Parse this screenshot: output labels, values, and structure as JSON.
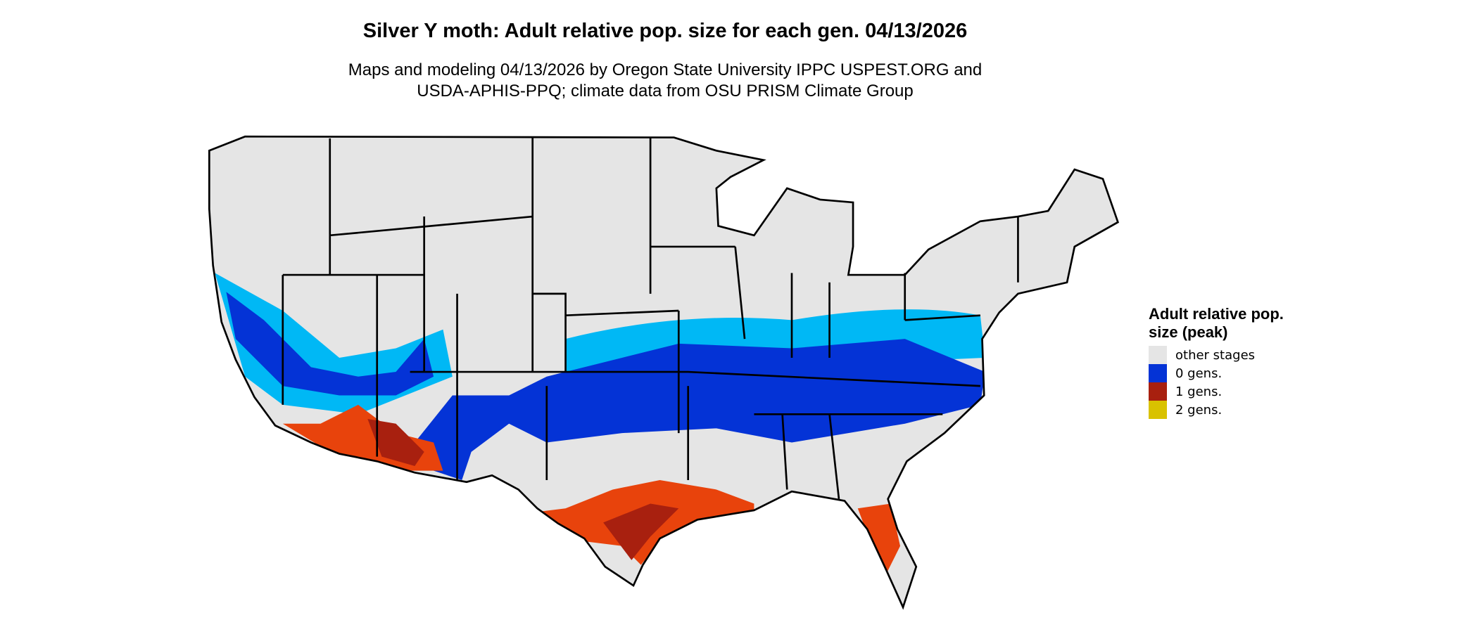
{
  "title": "Silver Y moth: Adult relative pop. size for each gen. 04/13/2026",
  "subtitle_line1": "Maps and modeling 04/13/2026 by Oregon State University IPPC USPEST.ORG and",
  "subtitle_line2": "USDA-APHIS-PPQ; climate data from OSU PRISM Climate Group",
  "legend": {
    "title": "Adult relative pop. size (peak)",
    "items": [
      {
        "label": "other stages",
        "color": "#e5e5e5"
      },
      {
        "label": "0 gens.",
        "color": "#0433d6"
      },
      {
        "label": "1 gens.",
        "color": "#a8200f"
      },
      {
        "label": "2 gens.",
        "color": "#d9c200"
      }
    ]
  },
  "map_colors": {
    "light_blue": "#00b8f5",
    "dark_blue": "#0433d6",
    "orange_red": "#e8430c",
    "dark_red": "#a8200f",
    "yellow": "#e0d000",
    "land": "#e5e5e5"
  }
}
